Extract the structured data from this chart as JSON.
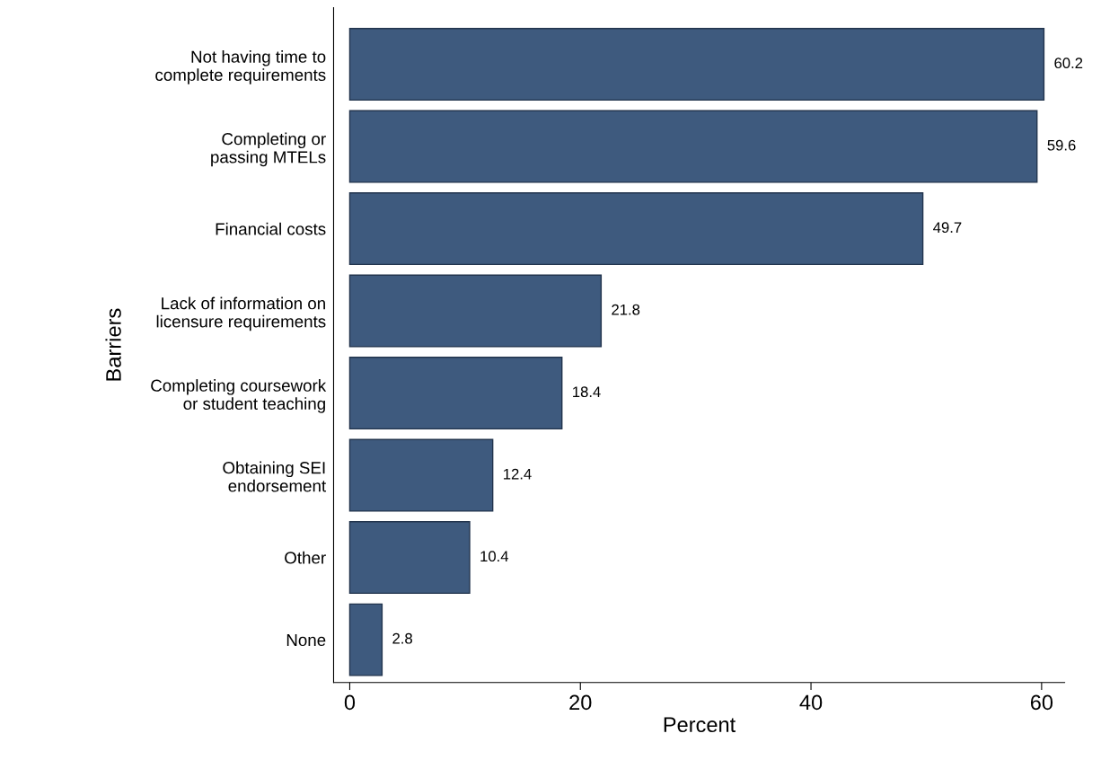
{
  "chart_data": {
    "type": "bar",
    "orientation": "horizontal",
    "xlabel": "Percent",
    "ylabel": "Barriers",
    "categories": [
      "Not having time to\ncomplete requirements",
      "Completing or\npassing MTELs",
      "Financial costs",
      "Lack of information on\nlicensure requirements",
      "Completing coursework\nor student teaching",
      "Obtaining SEI\nendorsement",
      "Other",
      "None"
    ],
    "values": [
      60.2,
      59.6,
      49.7,
      21.8,
      18.4,
      12.4,
      10.4,
      2.8
    ],
    "color": "#3e5a7e",
    "xlim": [
      -1.4,
      62
    ],
    "xticks": [
      0,
      20,
      40,
      60
    ],
    "data_labels": true,
    "grid": false
  }
}
